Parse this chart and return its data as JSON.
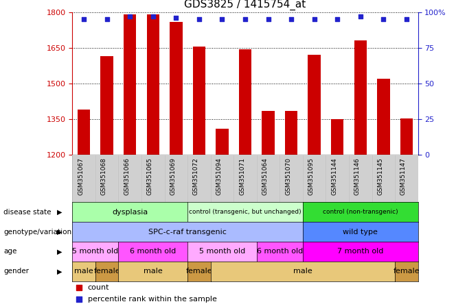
{
  "title": "GDS3825 / 1415754_at",
  "samples": [
    "GSM351067",
    "GSM351068",
    "GSM351066",
    "GSM351065",
    "GSM351069",
    "GSM351072",
    "GSM351094",
    "GSM351071",
    "GSM351064",
    "GSM351070",
    "GSM351095",
    "GSM351144",
    "GSM351146",
    "GSM351145",
    "GSM351147"
  ],
  "counts": [
    1390,
    1615,
    1790,
    1790,
    1760,
    1655,
    1310,
    1645,
    1385,
    1385,
    1620,
    1350,
    1680,
    1520,
    1355
  ],
  "percentiles": [
    95,
    95,
    97,
    97,
    96,
    95,
    95,
    95,
    95,
    95,
    95,
    95,
    97,
    95,
    95
  ],
  "ylim_left": [
    1200,
    1800
  ],
  "ylim_right": [
    0,
    100
  ],
  "yticks_left": [
    1200,
    1350,
    1500,
    1650,
    1800
  ],
  "yticks_right": [
    0,
    25,
    50,
    75,
    100
  ],
  "bar_color": "#cc0000",
  "dot_color": "#2222cc",
  "bar_bottom": 1200,
  "xlabel_bg": "#d0d0d0",
  "annotation_rows": [
    {
      "label": "disease state",
      "segments": [
        {
          "text": "dysplasia",
          "start": 0,
          "end": 4,
          "color": "#aaffaa"
        },
        {
          "text": "control (transgenic, but unchanged)",
          "start": 5,
          "end": 9,
          "color": "#ccffcc"
        },
        {
          "text": "control (non-transgenic)",
          "start": 10,
          "end": 14,
          "color": "#33dd33"
        }
      ]
    },
    {
      "label": "genotype/variation",
      "segments": [
        {
          "text": "SPC-c-raf transgenic",
          "start": 0,
          "end": 9,
          "color": "#aabbff"
        },
        {
          "text": "wild type",
          "start": 10,
          "end": 14,
          "color": "#5588ff"
        }
      ]
    },
    {
      "label": "age",
      "segments": [
        {
          "text": "5 month old",
          "start": 0,
          "end": 1,
          "color": "#ffaaff"
        },
        {
          "text": "6 month old",
          "start": 2,
          "end": 4,
          "color": "#ff55ff"
        },
        {
          "text": "5 month old",
          "start": 5,
          "end": 7,
          "color": "#ffaaff"
        },
        {
          "text": "6 month old",
          "start": 8,
          "end": 9,
          "color": "#ff55ff"
        },
        {
          "text": "7 month old",
          "start": 10,
          "end": 14,
          "color": "#ff00ff"
        }
      ]
    },
    {
      "label": "gender",
      "segments": [
        {
          "text": "male",
          "start": 0,
          "end": 0,
          "color": "#e8c87a"
        },
        {
          "text": "female",
          "start": 1,
          "end": 1,
          "color": "#cc9944"
        },
        {
          "text": "male",
          "start": 2,
          "end": 4,
          "color": "#e8c87a"
        },
        {
          "text": "female",
          "start": 5,
          "end": 5,
          "color": "#cc9944"
        },
        {
          "text": "male",
          "start": 6,
          "end": 13,
          "color": "#e8c87a"
        },
        {
          "text": "female",
          "start": 14,
          "end": 14,
          "color": "#cc9944"
        }
      ]
    }
  ],
  "legend": [
    {
      "label": "count",
      "color": "#cc0000"
    },
    {
      "label": "percentile rank within the sample",
      "color": "#2222cc"
    }
  ]
}
